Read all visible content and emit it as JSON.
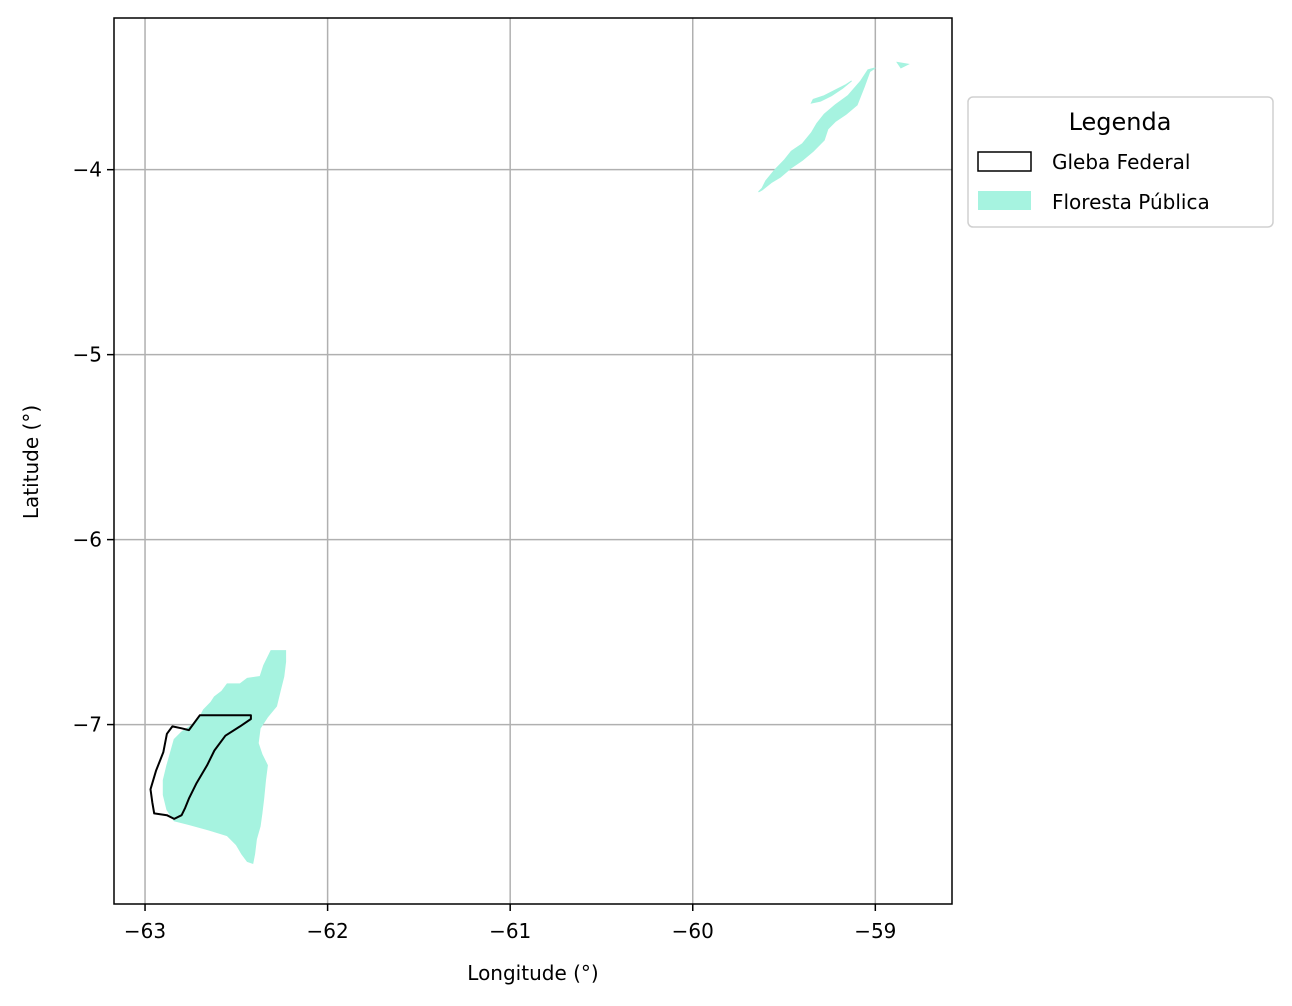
{
  "chart_data": {
    "type": "map",
    "xlabel": "Longitude (°)",
    "ylabel": "Latitude (°)",
    "xlim": [
      -63.17,
      -58.58
    ],
    "ylim": [
      -7.97,
      -3.18
    ],
    "xticks": [
      -63,
      -62,
      -61,
      -60,
      -59
    ],
    "yticks": [
      -4,
      -5,
      -6,
      -7
    ],
    "xtick_labels": [
      "−63",
      "−62",
      "−61",
      "−60",
      "−59"
    ],
    "ytick_labels": [
      "−4",
      "−5",
      "−6",
      "−7"
    ],
    "grid": true,
    "legend": {
      "title": "Legenda",
      "placement": "outside right, upper",
      "entries": [
        {
          "label": "Gleba Federal",
          "style": "outline",
          "color": "#000000"
        },
        {
          "label": "Floresta Pública",
          "style": "fill",
          "color": "#a6f3e0"
        }
      ]
    },
    "layers": [
      {
        "name": "Floresta Pública",
        "color": "#a6f3e0",
        "polygons": [
          [
            [
              -62.23,
              -6.6
            ],
            [
              -62.31,
              -6.6
            ],
            [
              -62.35,
              -6.68
            ],
            [
              -62.37,
              -6.74
            ],
            [
              -62.44,
              -6.75
            ],
            [
              -62.48,
              -6.78
            ],
            [
              -62.55,
              -6.78
            ],
            [
              -62.58,
              -6.82
            ],
            [
              -62.62,
              -6.85
            ],
            [
              -62.64,
              -6.88
            ],
            [
              -62.68,
              -6.92
            ],
            [
              -62.7,
              -6.96
            ],
            [
              -62.74,
              -7.0
            ],
            [
              -62.8,
              -7.04
            ],
            [
              -62.84,
              -7.08
            ],
            [
              -62.86,
              -7.15
            ],
            [
              -62.88,
              -7.22
            ],
            [
              -62.9,
              -7.3
            ],
            [
              -62.9,
              -7.38
            ],
            [
              -62.88,
              -7.46
            ],
            [
              -62.84,
              -7.52
            ],
            [
              -62.76,
              -7.54
            ],
            [
              -62.65,
              -7.57
            ],
            [
              -62.55,
              -7.6
            ],
            [
              -62.5,
              -7.65
            ],
            [
              -62.47,
              -7.7
            ],
            [
              -62.44,
              -7.74
            ],
            [
              -62.41,
              -7.75
            ],
            [
              -62.4,
              -7.7
            ],
            [
              -62.39,
              -7.62
            ],
            [
              -62.37,
              -7.55
            ],
            [
              -62.36,
              -7.48
            ],
            [
              -62.35,
              -7.4
            ],
            [
              -62.34,
              -7.3
            ],
            [
              -62.33,
              -7.22
            ],
            [
              -62.36,
              -7.16
            ],
            [
              -62.38,
              -7.1
            ],
            [
              -62.37,
              -7.02
            ],
            [
              -62.33,
              -6.96
            ],
            [
              -62.28,
              -6.9
            ],
            [
              -62.26,
              -6.82
            ],
            [
              -62.24,
              -6.74
            ],
            [
              -62.23,
              -6.66
            ]
          ],
          [
            [
              -59.0,
              -3.45
            ],
            [
              -59.03,
              -3.47
            ],
            [
              -59.06,
              -3.55
            ],
            [
              -59.1,
              -3.65
            ],
            [
              -59.16,
              -3.7
            ],
            [
              -59.22,
              -3.74
            ],
            [
              -59.26,
              -3.78
            ],
            [
              -59.28,
              -3.84
            ],
            [
              -59.34,
              -3.9
            ],
            [
              -59.4,
              -3.95
            ],
            [
              -59.46,
              -3.99
            ],
            [
              -59.52,
              -4.04
            ],
            [
              -59.57,
              -4.07
            ],
            [
              -59.62,
              -4.11
            ],
            [
              -59.64,
              -4.12
            ],
            [
              -59.62,
              -4.1
            ],
            [
              -59.6,
              -4.06
            ],
            [
              -59.55,
              -4.0
            ],
            [
              -59.5,
              -3.95
            ],
            [
              -59.46,
              -3.9
            ],
            [
              -59.4,
              -3.86
            ],
            [
              -59.35,
              -3.8
            ],
            [
              -59.32,
              -3.75
            ],
            [
              -59.28,
              -3.7
            ],
            [
              -59.22,
              -3.65
            ],
            [
              -59.15,
              -3.6
            ],
            [
              -59.08,
              -3.52
            ],
            [
              -59.04,
              -3.46
            ]
          ],
          [
            [
              -59.13,
              -3.52
            ],
            [
              -59.18,
              -3.56
            ],
            [
              -59.24,
              -3.6
            ],
            [
              -59.3,
              -3.63
            ],
            [
              -59.35,
              -3.64
            ],
            [
              -59.34,
              -3.62
            ],
            [
              -59.28,
              -3.6
            ],
            [
              -59.22,
              -3.57
            ],
            [
              -59.16,
              -3.54
            ]
          ],
          [
            [
              -58.88,
              -3.42
            ],
            [
              -58.82,
              -3.43
            ],
            [
              -58.86,
              -3.45
            ]
          ]
        ]
      },
      {
        "name": "Gleba Federal",
        "color": "#000000",
        "polygons": [
          [
            [
              -62.42,
              -6.95
            ],
            [
              -62.7,
              -6.95
            ],
            [
              -62.76,
              -7.03
            ],
            [
              -62.8,
              -7.02
            ],
            [
              -62.85,
              -7.01
            ],
            [
              -62.88,
              -7.05
            ],
            [
              -62.9,
              -7.15
            ],
            [
              -62.94,
              -7.25
            ],
            [
              -62.97,
              -7.35
            ],
            [
              -62.96,
              -7.42
            ],
            [
              -62.95,
              -7.48
            ],
            [
              -62.88,
              -7.49
            ],
            [
              -62.84,
              -7.51
            ],
            [
              -62.8,
              -7.49
            ],
            [
              -62.78,
              -7.45
            ],
            [
              -62.76,
              -7.4
            ],
            [
              -62.72,
              -7.32
            ],
            [
              -62.66,
              -7.22
            ],
            [
              -62.62,
              -7.14
            ],
            [
              -62.56,
              -7.06
            ],
            [
              -62.48,
              -7.01
            ],
            [
              -62.42,
              -6.97
            ]
          ]
        ]
      }
    ]
  }
}
